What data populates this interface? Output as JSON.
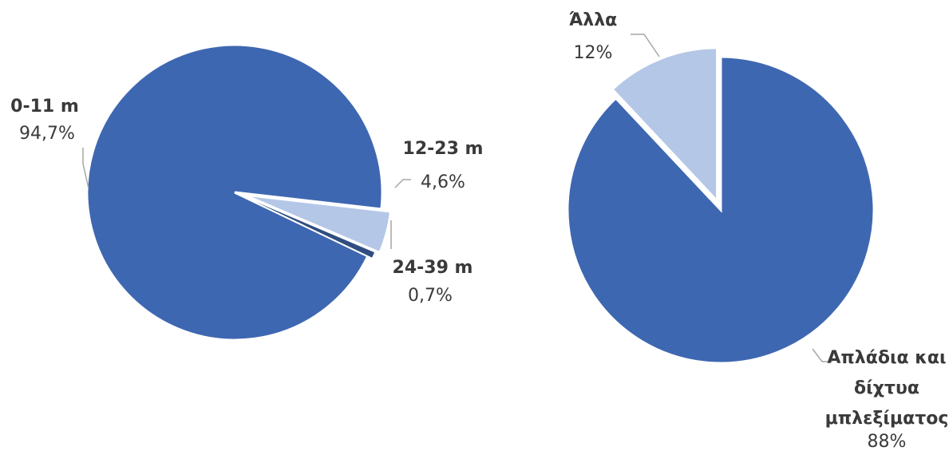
{
  "chart_data": [
    {
      "type": "pie",
      "slices": [
        {
          "label": "0-11 m",
          "value": 94.7,
          "value_label": "94,7%",
          "color": "#3e67b1"
        },
        {
          "label": "12-23 m",
          "value": 4.6,
          "value_label": "4,6%",
          "color": "#b4c7e7"
        },
        {
          "label": "24-39 m",
          "value": 0.7,
          "value_label": "0,7%",
          "color": "#2f4d80"
        }
      ]
    },
    {
      "type": "pie",
      "slices": [
        {
          "label": "Απλάδια και δίχτυα μπλεξίματος",
          "label_lines": [
            "Απλάδια και",
            "δίχτυα",
            "μπλεξίματος"
          ],
          "value": 88,
          "value_label": "88%",
          "color": "#3e67b1"
        },
        {
          "label": "Άλλα",
          "value": 12,
          "value_label": "12%",
          "color": "#b4c7e7"
        }
      ]
    }
  ]
}
